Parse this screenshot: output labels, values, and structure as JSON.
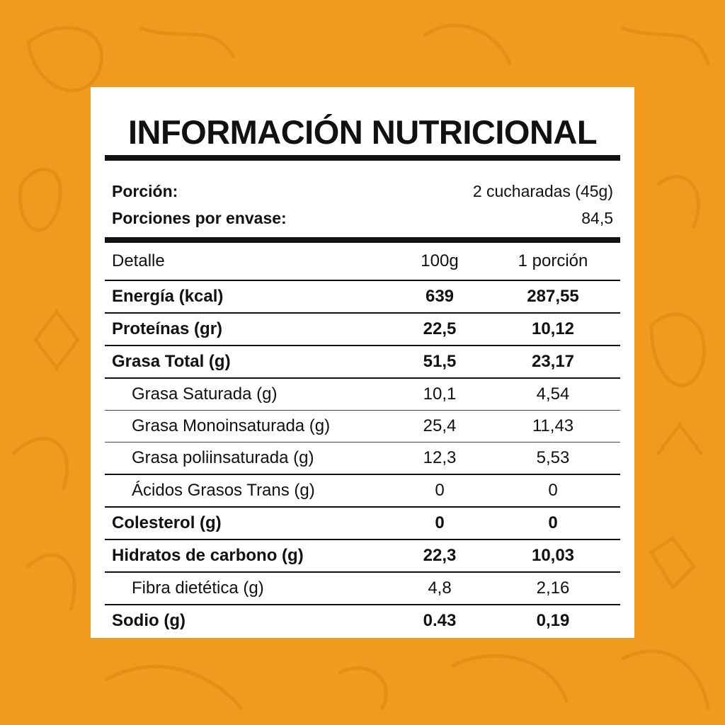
{
  "title": "INFORMACIÓN NUTRICIONAL",
  "serving": {
    "portion_label": "Porción:",
    "portion_value": "2 cucharadas (45g)",
    "per_pack_label": "Porciones por envase:",
    "per_pack_value": "84,5"
  },
  "table": {
    "headers": [
      "Detalle",
      "100g",
      "1 porción"
    ],
    "rows": [
      {
        "label": "Energía (kcal)",
        "per100": "639",
        "perPortion": "287,55",
        "bold": true
      },
      {
        "label": "Proteínas (gr)",
        "per100": "22,5",
        "perPortion": "10,12",
        "bold": true
      },
      {
        "label": "Grasa Total (g)",
        "per100": "51,5",
        "perPortion": "23,17",
        "bold": true
      },
      {
        "label": "Grasa Saturada (g)",
        "per100": "10,1",
        "perPortion": "4,54",
        "bold": false
      },
      {
        "label": "Grasa Monoinsaturada (g)",
        "per100": "25,4",
        "perPortion": "11,43",
        "bold": false
      },
      {
        "label": "Grasa poliinsaturada (g)",
        "per100": "12,3",
        "perPortion": "5,53",
        "bold": false
      },
      {
        "label": "Ácidos Grasos Trans (g)",
        "per100": "0",
        "perPortion": "0",
        "bold": false
      },
      {
        "label": "Colesterol (g)",
        "per100": "0",
        "perPortion": "0",
        "bold": true
      },
      {
        "label": "Hidratos de carbono (g)",
        "per100": "22,3",
        "perPortion": "10,03",
        "bold": true
      },
      {
        "label": "Fibra dietética (g)",
        "per100": "4,8",
        "perPortion": "2,16",
        "bold": false
      },
      {
        "label": "Sodio (g)",
        "per100": "0.43",
        "perPortion": "0,19",
        "bold": true
      }
    ]
  },
  "colors": {
    "background": "#f09a1e",
    "panel": "#ffffff",
    "text": "#111111",
    "doodle": "#e08a14"
  }
}
